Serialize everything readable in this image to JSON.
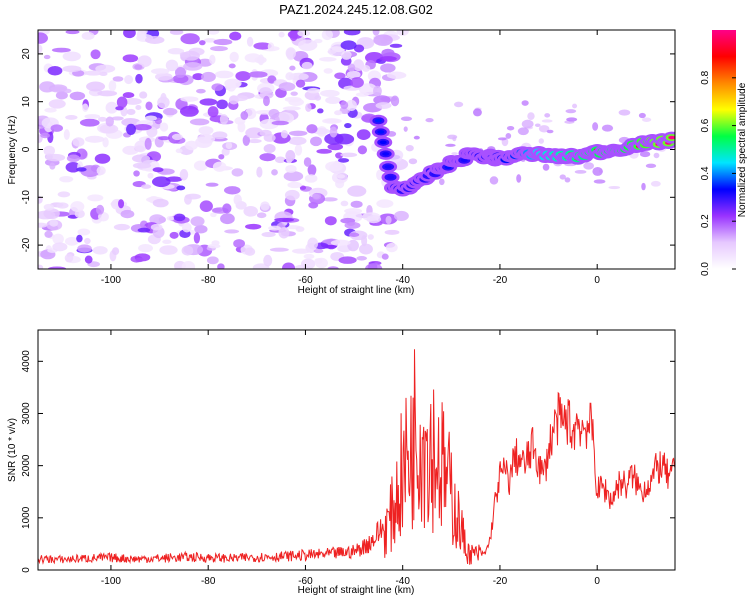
{
  "chart_data": [
    {
      "type": "heatmap",
      "title": "PAZ1.2024.245.12.08.G02",
      "xlabel": "Height of straight line (km)",
      "ylabel": "Frequency (Hz)",
      "xlim": [
        -115,
        16
      ],
      "ylim": [
        -25,
        25
      ],
      "xticks": [
        -100,
        -80,
        -60,
        -40,
        -20,
        0
      ],
      "yticks": [
        -20,
        -10,
        0,
        10,
        20
      ],
      "colorbar": {
        "label": "Normalized spectral amplitude",
        "range": [
          0,
          1
        ],
        "ticks": [
          "0.0",
          "0.2",
          "0.4",
          "0.6",
          "0.8"
        ],
        "colors": [
          "#ffffff",
          "#e6c8ff",
          "#9933ff",
          "#0000ff",
          "#00e5ff",
          "#00ff44",
          "#ffff00",
          "#ff8800",
          "#ff0000",
          "#ff0088"
        ]
      },
      "signal_ridge": [
        {
          "x": -45,
          "y": 6,
          "amp": 0.35
        },
        {
          "x": -42,
          "y": -8,
          "amp": 0.3
        },
        {
          "x": -38,
          "y": -8,
          "amp": 0.35
        },
        {
          "x": -34,
          "y": -5,
          "amp": 0.3
        },
        {
          "x": -30,
          "y": -3,
          "amp": 0.35
        },
        {
          "x": -26,
          "y": -1,
          "amp": 0.3
        },
        {
          "x": -22,
          "y": -1.5,
          "amp": 0.4
        },
        {
          "x": -20,
          "y": -2,
          "amp": 0.55
        },
        {
          "x": -16,
          "y": -1,
          "amp": 0.6
        },
        {
          "x": -12,
          "y": -1,
          "amp": 0.75
        },
        {
          "x": -8,
          "y": -1.5,
          "amp": 0.8
        },
        {
          "x": -4,
          "y": -1.5,
          "amp": 0.85
        },
        {
          "x": 0,
          "y": -0.5,
          "amp": 0.9
        },
        {
          "x": 4,
          "y": 0,
          "amp": 0.9
        },
        {
          "x": 8,
          "y": 1,
          "amp": 0.95
        },
        {
          "x": 12,
          "y": 1.5,
          "amp": 1.0
        },
        {
          "x": 16,
          "y": 2,
          "amp": 1.0
        }
      ]
    },
    {
      "type": "line",
      "xlabel": "Height of straight line (km)",
      "ylabel": "SNR (10 * v/v)",
      "xlim": [
        -115,
        16
      ],
      "ylim": [
        0,
        4600
      ],
      "xticks": [
        -100,
        -80,
        -60,
        -40,
        -20,
        0
      ],
      "yticks": [
        0,
        1000,
        2000,
        3000,
        4000
      ],
      "color": "#ee2222",
      "series": [
        {
          "x": [
            -115,
            -110,
            -105,
            -100,
            -95,
            -90,
            -85,
            -80,
            -75,
            -70,
            -65,
            -60,
            -55,
            -50,
            -48,
            -46,
            -44,
            -42,
            -41,
            -40,
            -39,
            -38,
            -37,
            -36,
            -35,
            -34,
            -33,
            -32,
            -31,
            -30,
            -29,
            -28,
            -27,
            -26,
            -25,
            -24,
            -23,
            -22,
            -21,
            -20,
            -19,
            -18,
            -17,
            -16,
            -15,
            -14,
            -13,
            -12,
            -11,
            -10,
            -9,
            -8,
            -7,
            -6,
            -5,
            -4,
            -3,
            -2,
            -1,
            0,
            1,
            2,
            3,
            4,
            5,
            6,
            7,
            8,
            9,
            10,
            11,
            12,
            13,
            14,
            15,
            16
          ],
          "values": [
            180,
            170,
            190,
            200,
            180,
            190,
            210,
            200,
            190,
            210,
            220,
            240,
            260,
            300,
            380,
            500,
            700,
            1100,
            1500,
            1900,
            2100,
            2400,
            3000,
            2600,
            2500,
            2400,
            2200,
            2000,
            1700,
            1500,
            1100,
            800,
            400,
            300,
            300,
            300,
            320,
            600,
            1300,
            1800,
            1900,
            1700,
            2200,
            2100,
            2000,
            2200,
            2400,
            2000,
            1800,
            2300,
            2700,
            2900,
            2800,
            2900,
            2600,
            2900,
            2700,
            2800,
            2700,
            1500,
            1600,
            1500,
            1300,
            1600,
            1700,
            1600,
            1800,
            1700,
            1500,
            1600,
            1700,
            1900,
            2000,
            1900,
            1700,
            2000
          ]
        }
      ]
    }
  ]
}
